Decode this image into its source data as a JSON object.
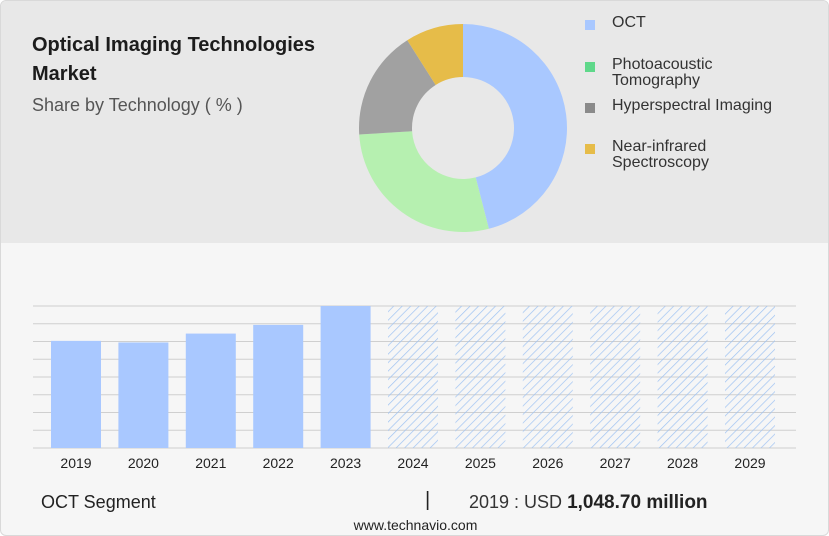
{
  "header": {
    "title": "Optical Imaging Technologies Market",
    "subtitle": "Share by Technology ( % )"
  },
  "colors": {
    "oct": "#a9c8ff",
    "photoacoustic": "#b6f0b0",
    "hyperspectral": "#a1a1a1",
    "nir": "#e6bc49",
    "legend_photoacoustic": "#5fd88a",
    "legend_hyperspectral": "#8a8a8a",
    "hatch": "#9fc3f2",
    "grid": "#cfcfcf"
  },
  "pie_chart": {
    "type": "pie",
    "donut": true,
    "legend_position": "right",
    "slices": [
      {
        "label": "OCT",
        "value": 46
      },
      {
        "label": "Photoacoustic Tomography",
        "value": 28
      },
      {
        "label": "Hyperspectral Imaging",
        "value": 17
      },
      {
        "label": "Near-infrared Spectroscopy",
        "value": 9
      }
    ],
    "legend": [
      {
        "lines": [
          "OCT"
        ],
        "color_key": "oct"
      },
      {
        "lines": [
          "Photoacoustic",
          "Tomography"
        ],
        "color_key": "legend_photoacoustic"
      },
      {
        "lines": [
          "Hyperspectral Imaging"
        ],
        "color_key": "legend_hyperspectral"
      },
      {
        "lines": [
          "Near-infrared",
          "Spectroscopy"
        ],
        "color_key": "nir"
      }
    ]
  },
  "chart_data": {
    "type": "bar",
    "categories": [
      "2019",
      "2020",
      "2021",
      "2022",
      "2023",
      "2024",
      "2025",
      "2026",
      "2027",
      "2028",
      "2029"
    ],
    "values": [
      1048.7,
      1033,
      1120,
      1205,
      1390,
      null,
      null,
      null,
      null,
      null,
      null
    ],
    "forecast": [
      false,
      false,
      false,
      false,
      false,
      true,
      true,
      true,
      true,
      true,
      true
    ],
    "ylim": [
      0,
      1390
    ],
    "grid": true,
    "xlabel": "",
    "ylabel": ""
  },
  "footer": {
    "segment": "OCT Segment",
    "separator": "|",
    "value_prefix": "2019 : USD",
    "value": "1,048.70 million",
    "website": "www.technavio.com"
  }
}
